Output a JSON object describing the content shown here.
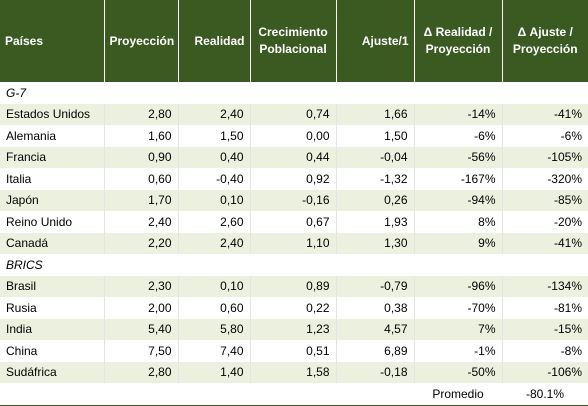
{
  "header": [
    "Países",
    "Proyección",
    "Realidad",
    "Crecimiento Poblacional",
    "Ajuste/1",
    "Δ Realidad / Proyección",
    "Δ Ajuste / Proyección"
  ],
  "groups": [
    {
      "label": "G-7",
      "rows": [
        [
          "Estados Unidos",
          "2,80",
          "2,40",
          "0,74",
          "1,66",
          "-14%",
          "-41%"
        ],
        [
          "Alemania",
          "1,60",
          "1,50",
          "0,00",
          "1,50",
          "-6%",
          "-6%"
        ],
        [
          "Francia",
          "0,90",
          "0,40",
          "0,44",
          "-0,04",
          "-56%",
          "-105%"
        ],
        [
          "Italia",
          "0,60",
          "-0,40",
          "0,92",
          "-1,32",
          "-167%",
          "-320%"
        ],
        [
          "Japón",
          "1,70",
          "0,10",
          "-0,16",
          "0,26",
          "-94%",
          "-85%"
        ],
        [
          "Reino Unido",
          "2,40",
          "2,60",
          "0,67",
          "1,93",
          "8%",
          "-20%"
        ],
        [
          "Canadá",
          "2,20",
          "2,40",
          "1,10",
          "1,30",
          "9%",
          "-41%"
        ]
      ]
    },
    {
      "label": "BRICS",
      "rows": [
        [
          "Brasil",
          "2,30",
          "0,10",
          "0,89",
          "-0,79",
          "-96%",
          "-134%"
        ],
        [
          "Rusia",
          "2,00",
          "0,60",
          "0,22",
          "0,38",
          "-70%",
          "-81%"
        ],
        [
          "India",
          "5,40",
          "5,80",
          "1,23",
          "4,57",
          "7%",
          "-15%"
        ],
        [
          "China",
          "7,50",
          "7,40",
          "0,51",
          "6,89",
          "-1%",
          "-8%"
        ],
        [
          "Sudáfrica",
          "2,80",
          "1,40",
          "1,58",
          "-0,18",
          "-50%",
          "-106%"
        ]
      ]
    }
  ],
  "footer": {
    "label": "Promedio",
    "value": "-80.1%"
  }
}
